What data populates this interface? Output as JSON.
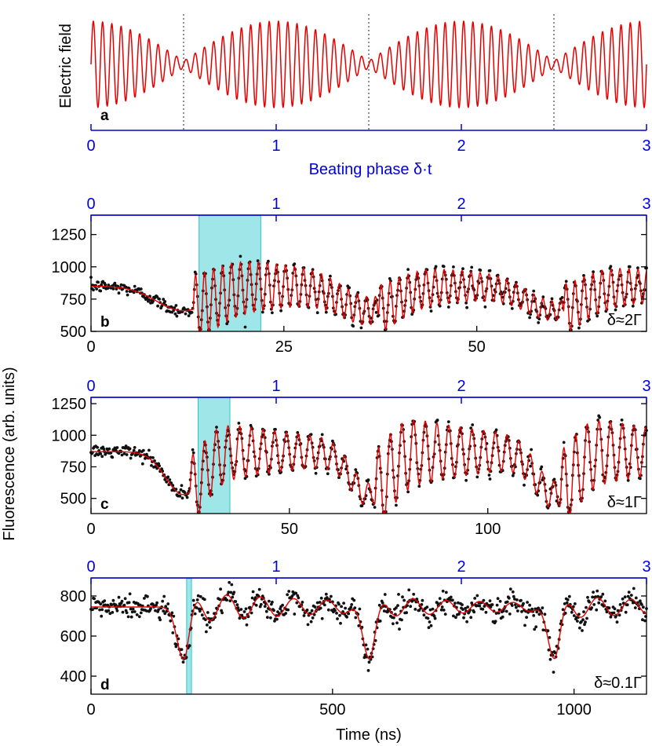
{
  "colors": {
    "field": "#e60000",
    "fit": "#e60000",
    "data": "#111111",
    "blue_axis": "#0000dd",
    "highlight_fill": "#9ee6e8",
    "highlight_stroke": "#2ec4c8",
    "frame": "#000000"
  },
  "shared_labels": {
    "y_fluorescence": "Fluorescence (arb. units)",
    "x_time": "Time (ns)"
  },
  "chart_data": [
    {
      "id": "a",
      "type": "line",
      "panel_label": "a",
      "ylabel": "Electric field",
      "xlabel_blue": "Beating phase  δ·t",
      "blue_axis": {
        "range": [
          0,
          3
        ],
        "ticks": [
          "0",
          "1",
          "2",
          "3"
        ]
      },
      "series": [
        {
          "function": "sin(2π·20·φ)·|cos(π·φ)|",
          "x_range": [
            0,
            3
          ],
          "cycles_per_unit": 20
        }
      ],
      "node_markers": [
        0.5,
        1.5,
        2.5
      ],
      "node_style": "dotted"
    },
    {
      "id": "b",
      "type": "scatter",
      "panel_label": "b",
      "annotation": "δ≈2Γ",
      "x_range": [
        0,
        72
      ],
      "ylim": [
        500,
        1400
      ],
      "y_ticks": [
        "500",
        "750",
        "1000",
        "1250"
      ],
      "x_ticks": [
        "0",
        "25",
        "50"
      ],
      "x_tick_values": [
        0,
        25,
        50
      ],
      "y_tick_values": [
        500,
        750,
        1000,
        1250
      ],
      "blue_axis": {
        "ticks": [
          "0",
          "1",
          "2",
          "3"
        ],
        "range": [
          0,
          3
        ]
      },
      "highlight": [
        14,
        22
      ],
      "model": {
        "baseline": 850,
        "dip_amplitude": 190,
        "dip_width": 3.5,
        "ring_amplitude": 310,
        "ring_decay": 10,
        "ring_frequency": 0.26
      },
      "noise_sd": 25
    },
    {
      "id": "c",
      "type": "scatter",
      "panel_label": "c",
      "annotation": "δ≈1Γ",
      "x_range": [
        0,
        140
      ],
      "ylim": [
        380,
        1300
      ],
      "y_ticks": [
        "500",
        "750",
        "1000",
        "1250"
      ],
      "x_ticks": [
        "0",
        "50",
        "100"
      ],
      "x_tick_values": [
        0,
        50,
        100
      ],
      "y_tick_values": [
        500,
        750,
        1000,
        1250
      ],
      "blue_axis": {
        "ticks": [
          "0",
          "1",
          "2",
          "3"
        ],
        "range": [
          0,
          3
        ]
      },
      "highlight": [
        27,
        35
      ],
      "model": {
        "baseline": 870,
        "dip_amplitude": 340,
        "dip_width": 4.5,
        "ring_amplitude": 330,
        "ring_decay": 8,
        "ring_frequency": 0.2
      },
      "noise_sd": 25
    },
    {
      "id": "d",
      "type": "scatter",
      "panel_label": "d",
      "annotation": "δ≈0.1Γ",
      "x_range": [
        0,
        1150
      ],
      "ylim": [
        310,
        890
      ],
      "y_ticks": [
        "400",
        "600",
        "800"
      ],
      "x_ticks": [
        "0",
        "500",
        "1000"
      ],
      "x_tick_values": [
        0,
        500,
        1000
      ],
      "y_tick_values": [
        400,
        600,
        800
      ],
      "blue_axis": {
        "ticks": [
          "0",
          "1",
          "2",
          "3"
        ],
        "range": [
          0,
          3
        ]
      },
      "highlight": [
        198,
        208
      ],
      "model": {
        "baseline": 745,
        "dip_amplitude": 260,
        "dip_width": 14,
        "ring_amplitude": 90,
        "ring_decay": 9,
        "ring_frequency": 0.07,
        "ring_offset": 12
      },
      "noise_sd": 30
    }
  ]
}
